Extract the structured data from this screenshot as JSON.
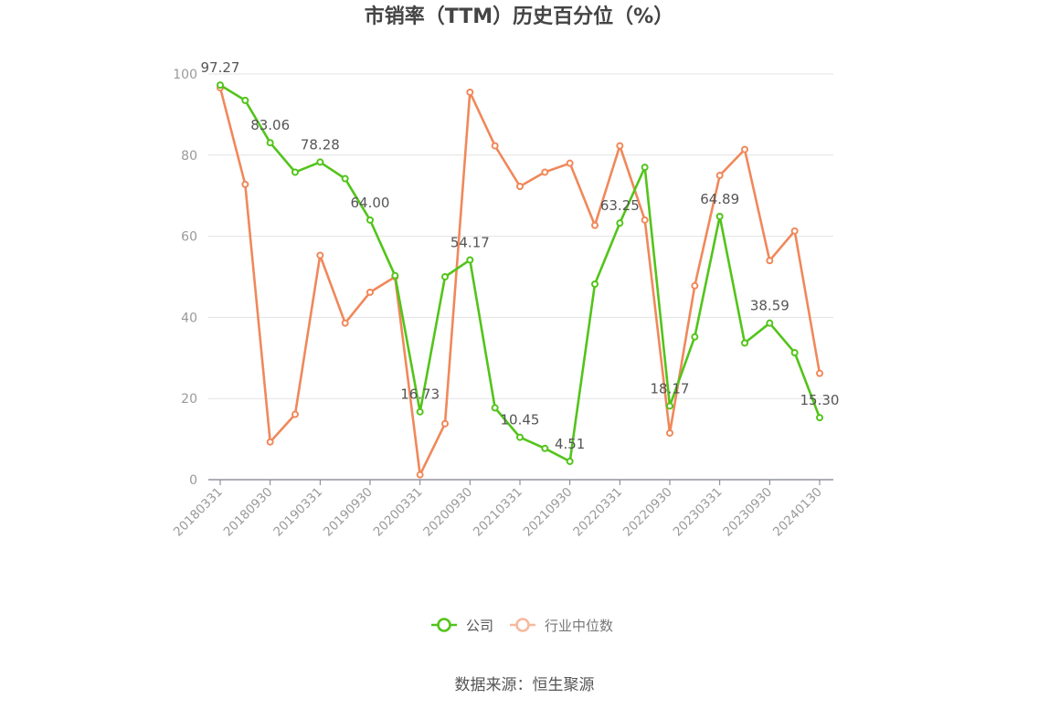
{
  "chart_data": {
    "type": "line",
    "title": "市销率（TTM）历史百分位（%）",
    "source": "数据来源：恒生聚源",
    "ylim": [
      0,
      100
    ],
    "y_ticks": [
      "0",
      "20",
      "40",
      "60",
      "80",
      "100"
    ],
    "grid": true,
    "legend_position": "bottom-center",
    "x": [
      "20180331",
      "20180630",
      "20180930",
      "20181231",
      "20190331",
      "20190630",
      "20190930",
      "20191231",
      "20200331",
      "20200630",
      "20200930",
      "20201231",
      "20210331",
      "20210630",
      "20210930",
      "20211231",
      "20220331",
      "20220630",
      "20220930",
      "20221231",
      "20230331",
      "20230630",
      "20230930",
      "20231231",
      "20240130"
    ],
    "x_tick_labels": [
      "20180331",
      "20180930",
      "20190331",
      "20190930",
      "20200331",
      "20200930",
      "20210331",
      "20210930",
      "20220331",
      "20220930",
      "20230331",
      "20230930",
      "20240130"
    ],
    "series": [
      {
        "name": "公司",
        "color": "#52c41a",
        "values": [
          97.27,
          93.5,
          83.06,
          75.8,
          78.28,
          74.2,
          64.0,
          50.3,
          16.73,
          50.0,
          54.17,
          17.7,
          10.45,
          7.7,
          4.51,
          48.2,
          63.25,
          77.0,
          18.17,
          35.2,
          64.89,
          33.7,
          38.59,
          31.3,
          15.3
        ],
        "labels": [
          "97.27",
          "",
          "83.06",
          "",
          "78.28",
          "",
          "64.00",
          "",
          "16.73",
          "",
          "54.17",
          "",
          "10.45",
          "",
          "4.51",
          "",
          "63.25",
          "",
          "18.17",
          "",
          "64.89",
          "",
          "38.59",
          "",
          "15.30"
        ]
      },
      {
        "name": "行业中位数",
        "color": "#f0885a",
        "values": [
          96.6,
          72.8,
          9.3,
          16.1,
          55.3,
          38.6,
          46.2,
          50.0,
          1.2,
          13.8,
          95.5,
          82.3,
          72.3,
          75.8,
          78.0,
          62.7,
          82.3,
          64.0,
          11.5,
          47.8,
          75.0,
          81.4,
          54.0,
          61.3,
          26.2
        ],
        "labels": []
      }
    ]
  }
}
